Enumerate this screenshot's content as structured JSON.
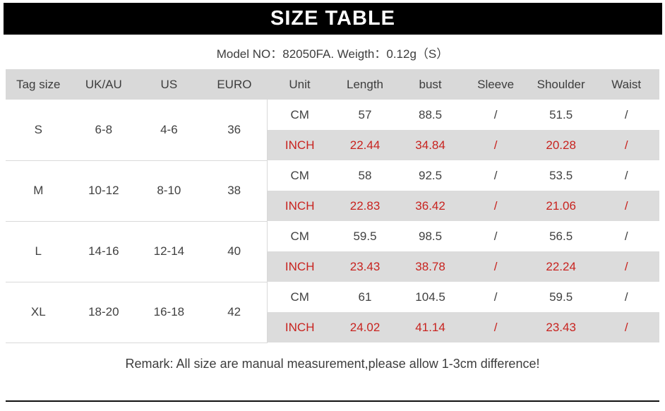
{
  "title": "SIZE TABLE",
  "model_line": "Model NO：82050FA. Weigth：0.12g（S）",
  "remark": "Remark: All size are manual measurement,please allow 1-3cm difference!",
  "colors": {
    "banner_bg": "#000000",
    "banner_text": "#ffffff",
    "header_bg": "#d9d9d9",
    "inch_row_bg": "#dcdcdc",
    "inch_text": "#c8231f",
    "body_text": "#414141",
    "divider": "#d9d9d9"
  },
  "table": {
    "headers": [
      "Tag size",
      "UK/AU",
      "US",
      "EURO",
      "Unit",
      "Length",
      "bust",
      "Sleeve",
      "Shoulder",
      "Waist"
    ],
    "unit_labels": {
      "cm": "CM",
      "inch": "INCH"
    },
    "groups": [
      {
        "tag": "S",
        "ukau": "6-8",
        "us": "4-6",
        "euro": "36",
        "cm": [
          "57",
          "88.5",
          "/",
          "51.5",
          "/"
        ],
        "inch": [
          "22.44",
          "34.84",
          "/",
          "20.28",
          "/"
        ]
      },
      {
        "tag": "M",
        "ukau": "10-12",
        "us": "8-10",
        "euro": "38",
        "cm": [
          "58",
          "92.5",
          "/",
          "53.5",
          "/"
        ],
        "inch": [
          "22.83",
          "36.42",
          "/",
          "21.06",
          "/"
        ]
      },
      {
        "tag": "L",
        "ukau": "14-16",
        "us": "12-14",
        "euro": "40",
        "cm": [
          "59.5",
          "98.5",
          "/",
          "56.5",
          "/"
        ],
        "inch": [
          "23.43",
          "38.78",
          "/",
          "22.24",
          "/"
        ]
      },
      {
        "tag": "XL",
        "ukau": "18-20",
        "us": "16-18",
        "euro": "42",
        "cm": [
          "61",
          "104.5",
          "/",
          "59.5",
          "/"
        ],
        "inch": [
          "24.02",
          "41.14",
          "/",
          "23.43",
          "/"
        ]
      }
    ]
  }
}
